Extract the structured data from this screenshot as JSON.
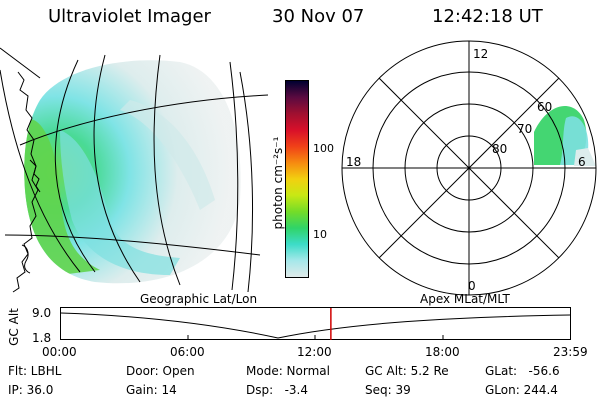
{
  "header": {
    "instrument": "Ultraviolet Imager",
    "date": "30 Nov 07",
    "time": "12:42:18 UT"
  },
  "colorbar": {
    "unit_label": "photon cm⁻²s⁻¹",
    "ticks": [
      "100",
      "10"
    ],
    "colors": [
      "#000030",
      "#5a0a40",
      "#a01030",
      "#d8102a",
      "#f04018",
      "#f68a10",
      "#f2d010",
      "#c8e814",
      "#74dc28",
      "#30d468",
      "#3cdcc8",
      "#a6e8ea",
      "#e0eaea"
    ]
  },
  "polar_plot": {
    "hour_labels": [
      "12",
      "18",
      "6",
      "0"
    ],
    "lat_labels": [
      "60",
      "70",
      "80"
    ]
  },
  "captions": {
    "left": "Geographic Lat/Lon",
    "right": "Apex MLat/MLT"
  },
  "gc_alt_strip": {
    "ylabel": "GC Alt",
    "ymax": "9.0",
    "ymin": "1.8",
    "x_ticks": [
      "00:00",
      "06:00",
      "12:00",
      "18:00",
      "23:59"
    ],
    "current_time_marker_hours": 12.7
  },
  "info": {
    "filter": "Flt: LBHL",
    "ip": "IP: 36.0",
    "door": "Door: Open",
    "gain": "Gain: 14",
    "mode": "Mode: Normal",
    "dsp": "Dsp:   -3.4",
    "gc_alt": "GC Alt: 5.2 Re",
    "seq": "Seq: 39",
    "glat": "GLat:   -56.6",
    "glon": "GLon: 244.4"
  }
}
